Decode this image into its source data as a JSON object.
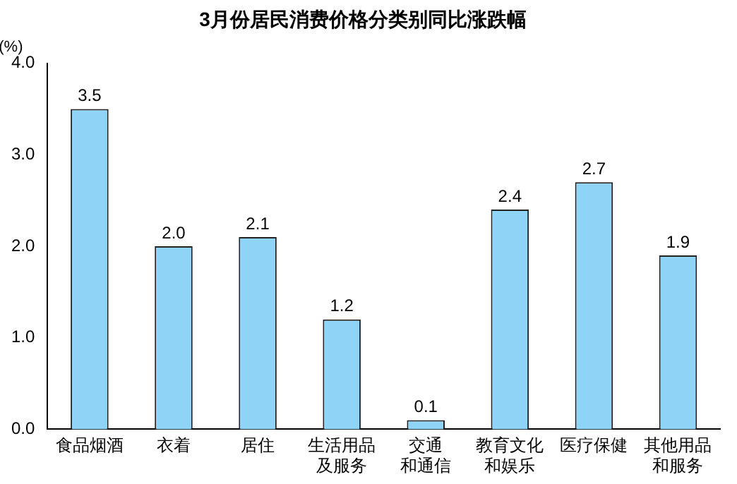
{
  "chart_data": {
    "type": "bar",
    "title": "3月份居民消费价格分类别同比涨跌幅",
    "ylabel": "(%)",
    "categories": [
      "食品烟酒",
      "衣着",
      "居住",
      "生活用品及服务",
      "交通和通信",
      "教育文化和娱乐",
      "医疗保健",
      "其他用品和服务"
    ],
    "values": [
      3.5,
      2.0,
      2.1,
      1.2,
      0.1,
      2.4,
      2.7,
      1.9
    ],
    "value_labels": [
      "3.5",
      "2.0",
      "2.1",
      "1.2",
      "0.1",
      "2.4",
      "2.7",
      "1.9"
    ],
    "color": "#8fd3f7",
    "ylim": [
      0,
      4
    ],
    "yticks": [
      {
        "value": 0,
        "label": "0.0"
      },
      {
        "value": 1,
        "label": "1.0"
      },
      {
        "value": 2,
        "label": "2.0"
      },
      {
        "value": 3,
        "label": "3.0"
      },
      {
        "value": 4,
        "label": "4.0"
      }
    ],
    "grid": false,
    "legend": false
  }
}
